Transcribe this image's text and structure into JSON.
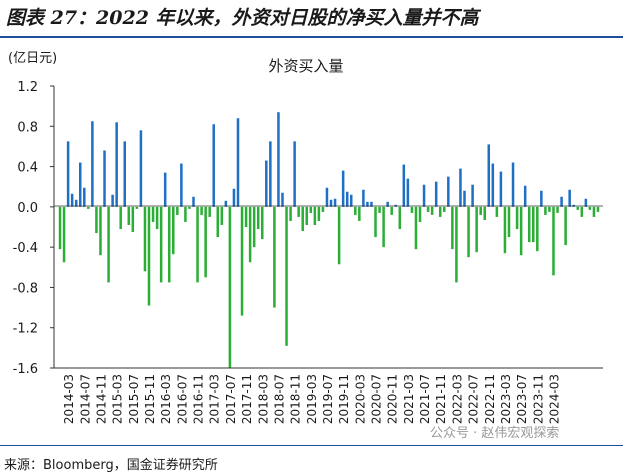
{
  "figure": {
    "title": "图表 27：2022 年以来，外资对日股的净买入量并不高",
    "source": "来源：Bloomberg，国金证券研究所",
    "watermark": "公众号 · 赵伟宏观探索"
  },
  "colors": {
    "positive": "#1f6fc5",
    "negative": "#2aae35",
    "axis": "#333333",
    "text": "#1a1a1a"
  },
  "chart_data": {
    "type": "bar",
    "title": "外资买入量",
    "ylabel": "(亿日元)",
    "ylim": [
      -1.6,
      1.2
    ],
    "yticks": [
      "1.2",
      "0.8",
      "0.4",
      "0.0",
      "-0.4",
      "-0.8",
      "-1.2",
      "-1.6"
    ],
    "ytick_values": [
      1.2,
      0.8,
      0.4,
      0.0,
      -0.4,
      -0.8,
      -1.2,
      -1.6
    ],
    "xtick_labels": [
      "2014-03",
      "2014-07",
      "2014-11",
      "2015-03",
      "2015-07",
      "2015-11",
      "2016-03",
      "2016-07",
      "2016-11",
      "2017-03",
      "2017-07",
      "2017-11",
      "2018-03",
      "2018-07",
      "2018-11",
      "2019-03",
      "2019-07",
      "2019-11",
      "2020-03",
      "2020-07",
      "2020-11",
      "2021-03",
      "2021-07",
      "2021-11",
      "2022-03",
      "2022-07",
      "2022-11",
      "2023-03",
      "2023-07",
      "2023-11",
      "2024-03"
    ],
    "grid": false,
    "legend": "none",
    "start_month": "2014-01",
    "values": [
      -0.42,
      -0.55,
      0.65,
      0.13,
      0.07,
      0.44,
      0.19,
      -0.02,
      0.85,
      -0.26,
      -0.48,
      0.56,
      -0.75,
      0.12,
      0.84,
      -0.22,
      0.65,
      -0.18,
      -0.25,
      -0.02,
      0.76,
      -0.64,
      -0.98,
      -0.15,
      -0.22,
      -0.75,
      0.34,
      -0.75,
      -0.47,
      -0.08,
      0.43,
      -0.15,
      -0.02,
      0.1,
      -0.75,
      -0.08,
      -0.7,
      -0.1,
      0.82,
      -0.3,
      -0.18,
      0.06,
      -1.6,
      0.18,
      0.88,
      -1.08,
      -0.2,
      -0.55,
      -0.4,
      -0.22,
      -0.32,
      0.46,
      0.65,
      -1.0,
      0.94,
      0.14,
      -1.38,
      -0.14,
      0.65,
      -0.1,
      -0.24,
      -0.18,
      -0.06,
      -0.18,
      -0.14,
      -0.05,
      0.19,
      0.07,
      0.08,
      -0.57,
      0.36,
      0.15,
      0.12,
      -0.08,
      -0.14,
      0.17,
      0.05,
      0.05,
      -0.3,
      -0.06,
      -0.4,
      0.05,
      -0.08,
      0.02,
      -0.22,
      0.42,
      0.28,
      -0.06,
      -0.42,
      -0.15,
      0.22,
      -0.05,
      -0.08,
      0.25,
      -0.1,
      -0.05,
      0.3,
      -0.42,
      -0.75,
      0.38,
      0.16,
      -0.5,
      0.22,
      -0.45,
      -0.08,
      -0.13,
      0.62,
      0.43,
      -0.1,
      0.35,
      -0.46,
      -0.3,
      0.44,
      -0.22,
      -0.48,
      0.21,
      -0.35,
      -0.35,
      -0.44,
      0.16,
      -0.08,
      -0.05,
      -0.68,
      -0.06,
      0.1,
      -0.38,
      0.17,
      0.02,
      -0.03,
      -0.1,
      0.08,
      -0.03,
      -0.1,
      -0.05
    ]
  }
}
